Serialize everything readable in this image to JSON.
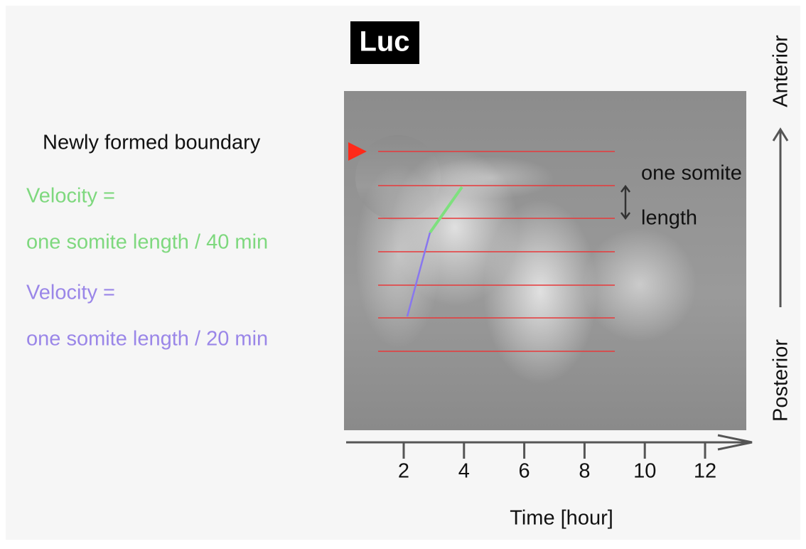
{
  "title": "Luc",
  "legend": {
    "boundary": "Newly formed boundary",
    "green": {
      "line1": "Velocity =",
      "line2": "one somite length / 40 min"
    },
    "purple": {
      "line1": "Velocity =",
      "line2": "one somite length / 20 min"
    }
  },
  "somite_label": {
    "line1": "one somite",
    "line2": "length"
  },
  "axis": {
    "anterior": "Anterior",
    "posterior": "Posterior"
  },
  "time_axis": {
    "label": "Time [hour]",
    "ticks": [
      2,
      4,
      6,
      8,
      10,
      12
    ]
  }
}
